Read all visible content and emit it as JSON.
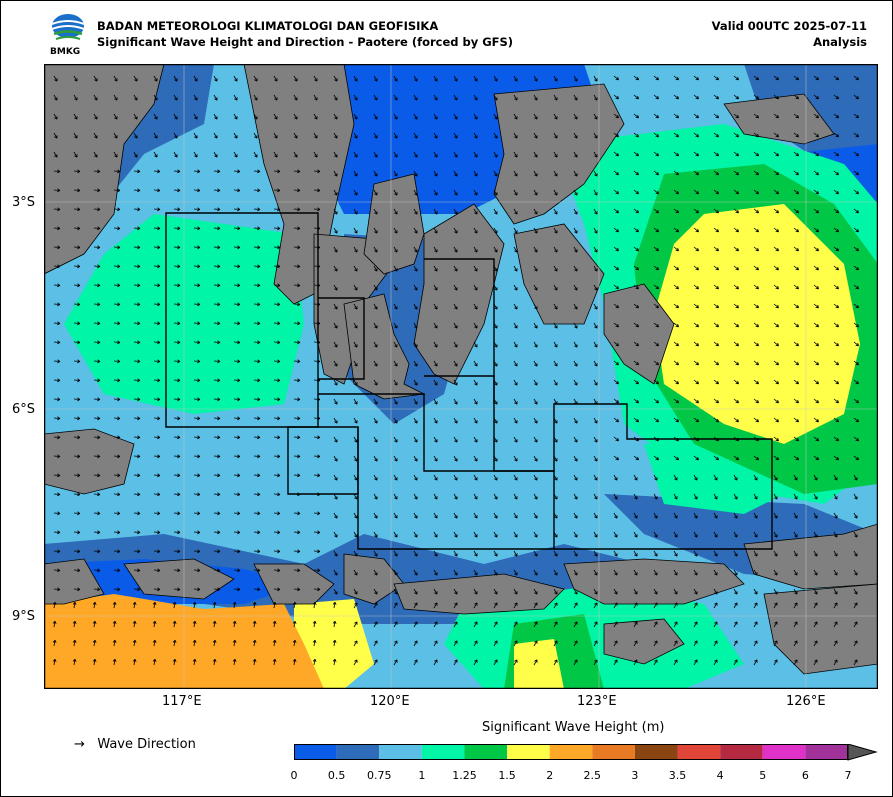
{
  "header": {
    "organization": "BADAN METEOROLOGI KLIMATOLOGI DAN GEOFISIKA",
    "subtitle": "Significant Wave Height and Direction - Paotere (forced by GFS)",
    "valid": "Valid 00UTC 2025-07-11",
    "analysis": "Analysis",
    "logo_text": "BMKG"
  },
  "map": {
    "lon_ticks": [
      "117°E",
      "120°E",
      "123°E",
      "126°E"
    ],
    "lat_ticks": [
      "3°S",
      "6°S",
      "9°S"
    ],
    "lon_range": [
      115.0,
      127.0
    ],
    "lat_range": [
      -1.0,
      -10.0
    ],
    "land_color": "#808080"
  },
  "legend": {
    "wave_direction_label": "Wave Direction",
    "arrow_glyph": "→",
    "colorbar_title": "Significant Wave Height (m)",
    "levels": [
      "0",
      "0.5",
      "0.75",
      "1",
      "1.25",
      "1.5",
      "2",
      "2.5",
      "3",
      "3.5",
      "4",
      "5",
      "6",
      "7"
    ],
    "colors": [
      "#0a5ce8",
      "#2e6bb8",
      "#5bbfe6",
      "#00f5a6",
      "#00c846",
      "#ffff4a",
      "#ffa726",
      "#e87a23",
      "#8b4513",
      "#e0453a",
      "#b52a42",
      "#e032c8",
      "#a0329a"
    ]
  }
}
